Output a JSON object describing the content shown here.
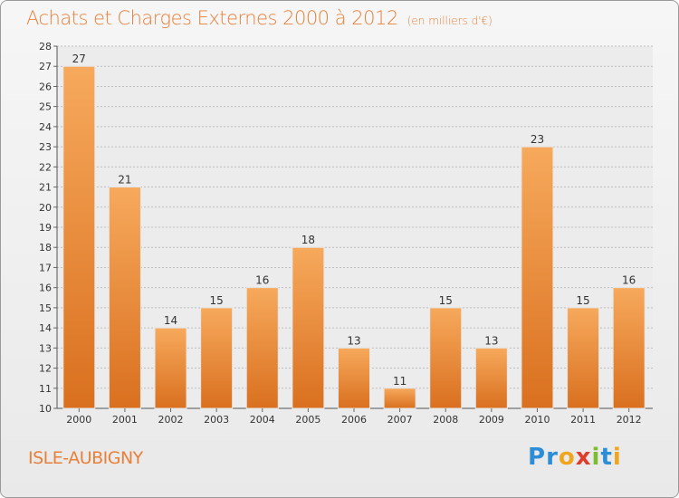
{
  "title": "Achats et Charges Externes 2000 à 2012",
  "unit_label": "(en milliers d'€)",
  "commune": "ISLE-AUBIGNY",
  "logo": {
    "text": "Proxiti",
    "letters": [
      "P",
      "r",
      "o",
      "x",
      "i",
      "t",
      "i"
    ],
    "colors": [
      "#2b8ed6",
      "#2b8ed6",
      "#f0a51e",
      "#e03c2e",
      "#7cbc2f",
      "#2b8ed6",
      "#f0a51e"
    ]
  },
  "colors": {
    "bar_light": "#f7a95c",
    "bar_dark": "#d9701f",
    "title": "#e8803a",
    "grid": "#bdbdbd"
  },
  "chart_data": {
    "type": "bar",
    "categories": [
      "2000",
      "2001",
      "2002",
      "2003",
      "2004",
      "2005",
      "2006",
      "2007",
      "2008",
      "2009",
      "2010",
      "2011",
      "2012"
    ],
    "values": [
      27,
      21,
      14,
      15,
      16,
      18,
      13,
      11,
      15,
      13,
      23,
      15,
      16
    ],
    "ylim": [
      10,
      28
    ],
    "yticks": [
      10,
      11,
      12,
      13,
      14,
      15,
      16,
      17,
      18,
      19,
      20,
      21,
      22,
      23,
      24,
      25,
      26,
      27,
      28
    ],
    "grid": "dashed horizontal",
    "legend": "none"
  }
}
